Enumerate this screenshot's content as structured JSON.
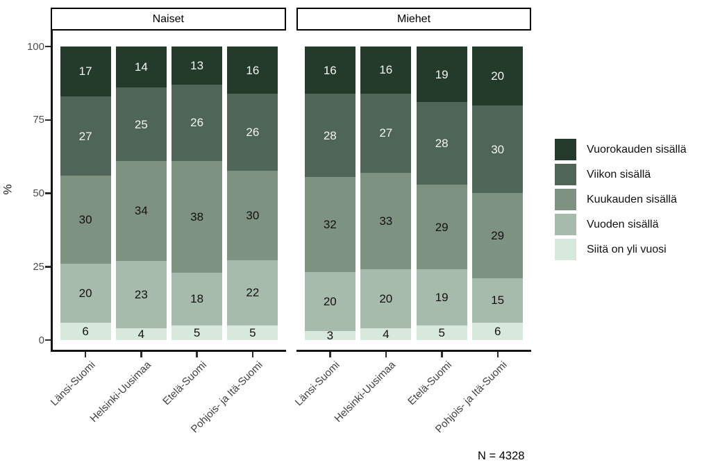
{
  "chart_data": {
    "type": "bar",
    "stacked": true,
    "unit": "%",
    "ylabel": "%",
    "yticks": [
      0,
      25,
      50,
      75,
      100
    ],
    "ylim": [
      0,
      100
    ],
    "legend_position": "right",
    "note": "N = 4328",
    "series_note": "values per bar are listed top-to-bottom, matching series order; top segment is first",
    "series": [
      {
        "name": "Vuorokauden sisällä",
        "color": "#243b2c",
        "label_color": "#f2f6f2"
      },
      {
        "name": "Viikon sisällä",
        "color": "#4e6557",
        "label_color": "#f2f6f2"
      },
      {
        "name": "Kuukauden sisällä",
        "color": "#7e9282",
        "label_color": "#111111"
      },
      {
        "name": "Vuoden sisällä",
        "color": "#a7bbac",
        "label_color": "#111111"
      },
      {
        "name": "Siitä on yli vuosi",
        "color": "#d7e8dc",
        "label_color": "#111111"
      }
    ],
    "facets": [
      {
        "label": "Naiset",
        "categories": [
          "Länsi-Suomi",
          "Helsinki-Uusimaa",
          "Etelä-Suomi",
          "Pohjois- ja Itä-Suomi"
        ],
        "values_by_category": [
          [
            17,
            27,
            30,
            20,
            6
          ],
          [
            14,
            25,
            34,
            23,
            4
          ],
          [
            13,
            26,
            38,
            18,
            5
          ],
          [
            16,
            26,
            30,
            22,
            5
          ]
        ]
      },
      {
        "label": "Miehet",
        "categories": [
          "Länsi-Suomi",
          "Helsinki-Uusimaa",
          "Etelä-Suomi",
          "Pohjois- ja Itä-Suomi"
        ],
        "values_by_category": [
          [
            16,
            28,
            32,
            20,
            3
          ],
          [
            16,
            27,
            33,
            20,
            4
          ],
          [
            19,
            28,
            29,
            19,
            5
          ],
          [
            20,
            30,
            29,
            15,
            6
          ]
        ]
      }
    ]
  }
}
